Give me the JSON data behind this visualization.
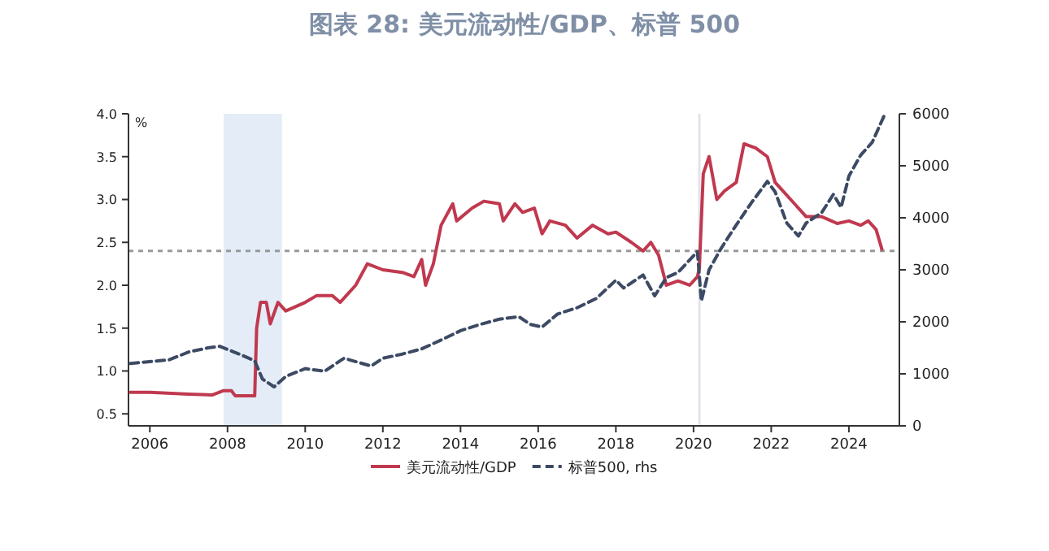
{
  "chart_data": {
    "type": "line",
    "title": "图表 28: 美元流动性/GDP、标普 500",
    "ylabel": "%",
    "xlim": [
      2005.45,
      2025.3
    ],
    "xticks": [
      2006,
      2008,
      2010,
      2012,
      2014,
      2016,
      2018,
      2020,
      2022,
      2024
    ],
    "ylim": [
      0.36,
      4.0
    ],
    "yticks": [
      0.5,
      {
        "value": 1,
        "label": "1.0"
      },
      1.5,
      {
        "value": 2,
        "label": "2.0"
      },
      2.5,
      {
        "value": 3,
        "label": "3.0"
      },
      3.5,
      {
        "value": 4,
        "label": "4.0"
      }
    ],
    "y2lim": [
      0,
      6000
    ],
    "y2ticks": [
      0,
      1000,
      2000,
      3000,
      4000,
      5000,
      6000
    ],
    "legend": "bottom",
    "grid": false,
    "ref_lines": [
      {
        "axis": "y",
        "value": 2.4,
        "color": "#999999",
        "line_style": "dashed"
      },
      {
        "axis": "x",
        "value": 2020.15,
        "color": "#e0e4ea",
        "line_style": "solid"
      }
    ],
    "bands": [
      {
        "axis": "x",
        "from": 2007.9,
        "to": 2009.4,
        "color": "#e3ecf7"
      }
    ],
    "series": [
      {
        "name": "美元流动性/GDP",
        "color": "#c0394f",
        "line_style": "solid",
        "x": [
          2005.5,
          2006,
          2007,
          2007.6,
          2007.9,
          2008.1,
          2008.2,
          2008.7,
          2008.75,
          2008.85,
          2009.0,
          2009.1,
          2009.3,
          2009.5,
          2010.0,
          2010.3,
          2010.7,
          2010.9,
          2011.3,
          2011.6,
          2012.0,
          2012.5,
          2012.8,
          2013.0,
          2013.1,
          2013.3,
          2013.5,
          2013.8,
          2013.9,
          2014.3,
          2014.6,
          2015.0,
          2015.1,
          2015.4,
          2015.6,
          2015.9,
          2016.1,
          2016.3,
          2016.7,
          2017.0,
          2017.4,
          2017.8,
          2018.0,
          2018.4,
          2018.7,
          2018.9,
          2019.1,
          2019.3,
          2019.6,
          2019.9,
          2020.1,
          2020.15,
          2020.25,
          2020.4,
          2020.6,
          2020.8,
          2021.1,
          2021.3,
          2021.6,
          2021.9,
          2022.1,
          2022.3,
          2022.6,
          2022.9,
          2023.3,
          2023.7,
          2024.0,
          2024.3,
          2024.5,
          2024.7,
          2024.85
        ],
        "values": [
          0.75,
          0.75,
          0.73,
          0.72,
          0.77,
          0.77,
          0.71,
          0.71,
          1.5,
          1.8,
          1.8,
          1.55,
          1.8,
          1.7,
          1.8,
          1.88,
          1.88,
          1.8,
          2.0,
          2.25,
          2.18,
          2.15,
          2.1,
          2.3,
          2.0,
          2.25,
          2.7,
          2.95,
          2.75,
          2.9,
          2.98,
          2.95,
          2.75,
          2.95,
          2.85,
          2.9,
          2.6,
          2.75,
          2.7,
          2.55,
          2.7,
          2.6,
          2.62,
          2.5,
          2.4,
          2.5,
          2.35,
          2.0,
          2.05,
          2.0,
          2.1,
          2.2,
          3.3,
          3.5,
          3.0,
          3.1,
          3.2,
          3.65,
          3.6,
          3.5,
          3.2,
          3.1,
          2.95,
          2.8,
          2.8,
          2.72,
          2.75,
          2.7,
          2.75,
          2.65,
          2.42
        ]
      },
      {
        "name": "标普500, rhs",
        "color": "#3d4a64",
        "axis": "y2",
        "line_style": "dashed",
        "x": [
          2005.5,
          2006.5,
          2007.0,
          2007.5,
          2007.8,
          2008.3,
          2008.7,
          2008.9,
          2009.2,
          2009.5,
          2010.0,
          2010.5,
          2011.0,
          2011.7,
          2012.0,
          2012.5,
          2013.0,
          2013.5,
          2014.0,
          2014.5,
          2015.0,
          2015.5,
          2015.8,
          2016.1,
          2016.5,
          2017.0,
          2017.5,
          2018.0,
          2018.2,
          2018.7,
          2019.0,
          2019.3,
          2019.6,
          2020.1,
          2020.2,
          2020.4,
          2020.7,
          2021.0,
          2021.5,
          2021.9,
          2022.1,
          2022.4,
          2022.7,
          2022.9,
          2023.3,
          2023.6,
          2023.8,
          2024.0,
          2024.3,
          2024.6,
          2024.9
        ],
        "values": [
          1200,
          1270,
          1420,
          1500,
          1530,
          1380,
          1250,
          900,
          750,
          950,
          1100,
          1050,
          1300,
          1150,
          1300,
          1380,
          1480,
          1650,
          1830,
          1950,
          2050,
          2100,
          1950,
          1900,
          2150,
          2270,
          2450,
          2800,
          2650,
          2900,
          2500,
          2850,
          2950,
          3350,
          2400,
          3000,
          3400,
          3750,
          4300,
          4700,
          4500,
          3900,
          3650,
          3900,
          4100,
          4450,
          4200,
          4800,
          5200,
          5450,
          5950
        ]
      }
    ]
  }
}
